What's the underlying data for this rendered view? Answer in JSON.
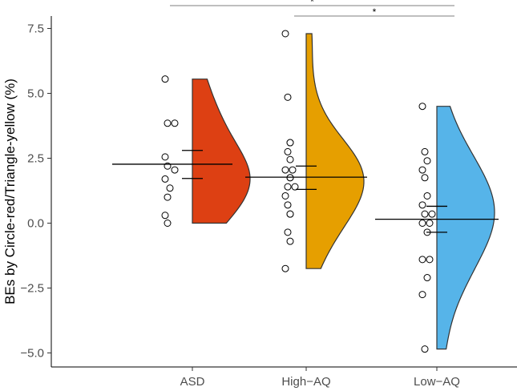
{
  "chart_data": {
    "type": "raincloud",
    "title": "",
    "xlabel": "",
    "ylabel": "BEs by Circle-red/Triangle-yellow (%)",
    "ylim": [
      -5.3,
      7.7
    ],
    "yticks": [
      -5.0,
      -2.5,
      0.0,
      2.5,
      5.0,
      7.5
    ],
    "ytick_labels": [
      "−5.0",
      "−2.5",
      "0.0",
      "2.5",
      "5.0",
      "7.5"
    ],
    "categories": [
      "ASD",
      "High−AQ",
      "Low−AQ"
    ],
    "series": [
      {
        "color": "#dd4013",
        "points": [
          5.55,
          3.85,
          3.85,
          2.55,
          2.2,
          2.05,
          1.7,
          1.0,
          1.35,
          0.3,
          0.0
        ],
        "mean": 2.27,
        "ci": [
          1.72,
          2.8
        ],
        "density_range": [
          0.0,
          5.55
        ],
        "density_peak": 1.0
      },
      {
        "color": "#e69f00",
        "points": [
          7.3,
          4.85,
          3.1,
          3.1,
          2.75,
          2.45,
          2.05,
          2.05,
          1.75,
          1.75,
          1.4,
          1.4,
          1.05,
          0.7,
          0.35,
          0.35,
          -0.35,
          -0.7,
          -1.75
        ],
        "mean": 1.77,
        "ci": [
          1.3,
          2.2
        ],
        "density_range": [
          -1.75,
          7.3
        ],
        "density_peak": 1.75
      },
      {
        "color": "#56b4e9",
        "points": [
          4.5,
          2.75,
          2.4,
          2.05,
          1.75,
          1.05,
          0.7,
          0.35,
          0.35,
          0.0,
          0.0,
          -0.35,
          -1.4,
          -1.4,
          -2.1,
          -2.75,
          -4.85
        ],
        "mean": 0.15,
        "ci": [
          -0.35,
          0.65
        ],
        "density_range": [
          -4.85,
          4.5
        ],
        "density_peak": 0.15
      }
    ],
    "significance": [
      {
        "from": 0,
        "to": 2,
        "label": "*"
      },
      {
        "from": 1,
        "to": 2,
        "label": "*"
      }
    ],
    "grid": false
  }
}
